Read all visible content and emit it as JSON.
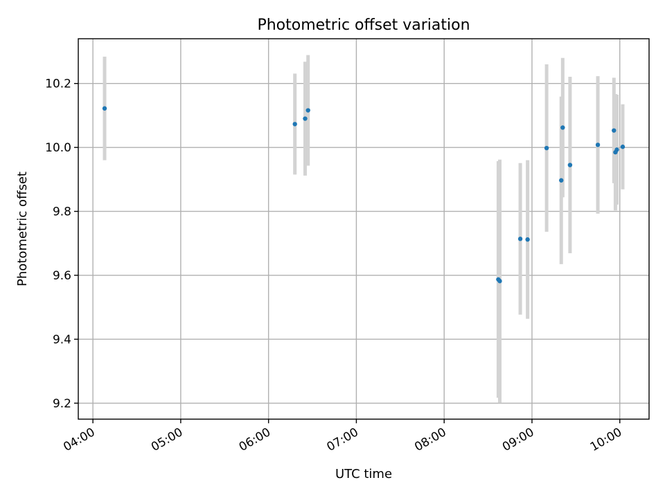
{
  "chart_data": {
    "type": "scatter",
    "title": "Photometric offset variation",
    "xlabel": "UTC time",
    "ylabel": "Photometric offset",
    "xlim": [
      "03:50",
      "10:20"
    ],
    "ylim": [
      9.15,
      10.34
    ],
    "x_ticks": [
      "04:00",
      "05:00",
      "06:00",
      "07:00",
      "08:00",
      "09:00",
      "10:00"
    ],
    "y_ticks": [
      9.2,
      9.4,
      9.6,
      9.8,
      10.0,
      10.2
    ],
    "grid": true,
    "colors": {
      "point": "#1f77b4",
      "errorbar": "#d3d3d3",
      "grid": "#b0b0b0"
    },
    "points": [
      {
        "x": "04:08",
        "y": 10.122,
        "err": 0.162
      },
      {
        "x": "06:18",
        "y": 10.073,
        "err": 0.158
      },
      {
        "x": "06:25",
        "y": 10.09,
        "err": 0.178
      },
      {
        "x": "06:27",
        "y": 10.116,
        "err": 0.173
      },
      {
        "x": "08:37",
        "y": 9.587,
        "err": 0.37
      },
      {
        "x": "08:38",
        "y": 9.582,
        "err": 0.38
      },
      {
        "x": "08:52",
        "y": 9.714,
        "err": 0.237
      },
      {
        "x": "08:57",
        "y": 9.712,
        "err": 0.248
      },
      {
        "x": "09:10",
        "y": 9.998,
        "err": 0.262
      },
      {
        "x": "09:20",
        "y": 9.897,
        "err": 0.262
      },
      {
        "x": "09:21",
        "y": 10.062,
        "err": 0.218
      },
      {
        "x": "09:26",
        "y": 9.945,
        "err": 0.276
      },
      {
        "x": "09:45",
        "y": 10.008,
        "err": 0.215
      },
      {
        "x": "09:56",
        "y": 10.053,
        "err": 0.165
      },
      {
        "x": "09:57",
        "y": 9.985,
        "err": 0.182
      },
      {
        "x": "09:58",
        "y": 9.993,
        "err": 0.172
      },
      {
        "x": "10:02",
        "y": 10.002,
        "err": 0.133
      }
    ]
  }
}
